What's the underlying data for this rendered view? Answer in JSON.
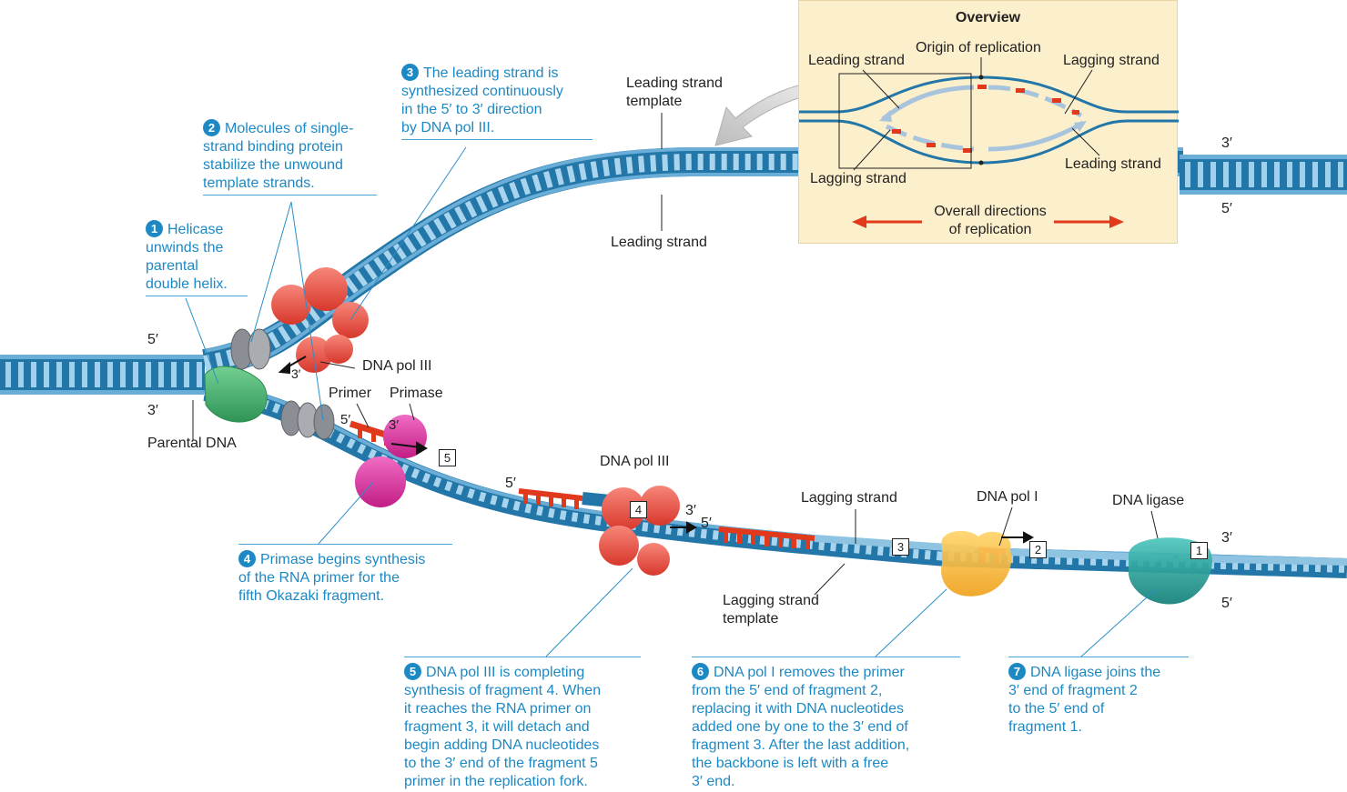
{
  "colors": {
    "dna_dark": "#2377a8",
    "dna_light": "#8fc3e2",
    "backbone": "#6aaed8",
    "primer": "#e0391c",
    "caption": "#1d89c4",
    "overview_bg": "#fcefcc",
    "polIII": "#e94c3c",
    "primase": "#d8289a",
    "helicase": "#3fae6a",
    "polI": "#f6b02c",
    "ligase": "#1aa8a0",
    "ssb": "#8b8f95"
  },
  "labels": {
    "five_prime_left": "5′",
    "three_prime_left": "3′",
    "parental_dna": "Parental DNA",
    "leading_strand_template": [
      "Leading strand",
      "template"
    ],
    "leading_strand": "Leading strand",
    "three_prime_right_top": "3′",
    "five_prime_right_top": "5′",
    "dna_pol_iii_top": "DNA pol III",
    "three_prime_polIII": "3′",
    "primer": "Primer",
    "primase": "Primase",
    "five_prime_primer": "5′",
    "three_prime_primer": "3′",
    "box_5": "5",
    "dna_pol_iii_bottom": "DNA pol III",
    "five_prime_frag4": "5′",
    "three_prime_frag4": "3′",
    "box_4": "4",
    "five_prime_frag3": "5′",
    "lagging_strand": "Lagging strand",
    "box_3": "3",
    "dna_pol_i": "DNA pol I",
    "box_2": "2",
    "dna_ligase": "DNA ligase",
    "box_1": "1",
    "three_prime_right_bottom": "3′",
    "five_prime_right_bottom": "5′",
    "lagging_strand_template": [
      "Lagging strand",
      "template"
    ]
  },
  "overview": {
    "title": "Overview",
    "origin": "Origin of replication",
    "leading_strand_left": "Leading strand",
    "lagging_strand_right": "Lagging strand",
    "lagging_strand_left": "Lagging strand",
    "leading_strand_right": "Leading strand",
    "directions": [
      "Overall directions",
      "of replication"
    ]
  },
  "steps": [
    {
      "number": "1",
      "lines": [
        "Helicase",
        "unwinds the",
        "parental",
        "double helix."
      ]
    },
    {
      "number": "2",
      "lines": [
        "Molecules of single-",
        "strand binding protein",
        "stabilize the unwound",
        "template strands."
      ]
    },
    {
      "number": "3",
      "lines": [
        "The leading strand is",
        "synthesized continuously",
        "in the 5′ to 3′ direction",
        "by DNA pol III."
      ]
    },
    {
      "number": "4",
      "lines": [
        "Primase begins synthesis",
        "of the RNA primer for the",
        "fifth Okazaki fragment."
      ]
    },
    {
      "number": "5",
      "lines": [
        "DNA pol III is completing",
        "synthesis of fragment 4. When",
        "it reaches the RNA primer on",
        "fragment 3, it will detach and",
        "begin adding DNA nucleotides",
        "to the 3′ end of the fragment 5",
        "primer in the replication fork."
      ]
    },
    {
      "number": "6",
      "lines": [
        "DNA pol I removes the primer",
        "from the 5′ end of fragment 2,",
        "replacing it with DNA nucleotides",
        "added one by one to the 3′ end of",
        "fragment 3. After the last addition,",
        "the backbone is left with a free",
        "3′ end."
      ]
    },
    {
      "number": "7",
      "lines": [
        "DNA ligase joins the",
        "3′ end of fragment 2",
        "to the 5′ end of",
        "fragment 1."
      ]
    }
  ]
}
